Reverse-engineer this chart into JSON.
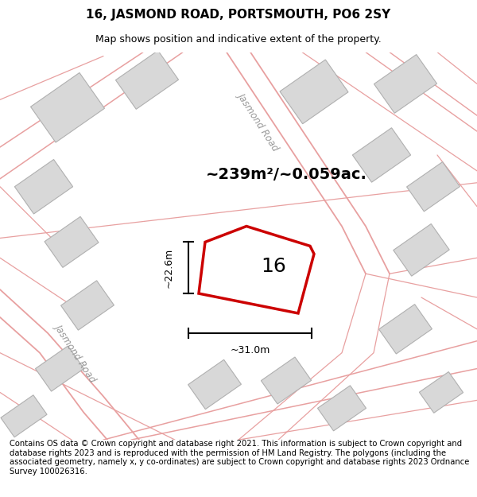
{
  "title": "16, JASMOND ROAD, PORTSMOUTH, PO6 2SY",
  "subtitle": "Map shows position and indicative extent of the property.",
  "footer": "Contains OS data © Crown copyright and database right 2021. This information is subject to Crown copyright and database rights 2023 and is reproduced with the permission of HM Land Registry. The polygons (including the associated geometry, namely x, y co-ordinates) are subject to Crown copyright and database rights 2023 Ordnance Survey 100026316.",
  "area_label": "~239m²/~0.059ac.",
  "number_label": "16",
  "dim_width": "~31.0m",
  "dim_height": "~22.6m",
  "road_label_1": "Jasmond Road",
  "road_label_2": "Jasmond Road",
  "background_color": "#ffffff",
  "building_fill": "#d8d8d8",
  "building_edge": "#b0b0b0",
  "road_line_color": "#e8a0a0",
  "highlight_color": "#cc0000",
  "dim_line_color": "#000000",
  "title_fontsize": 11,
  "subtitle_fontsize": 9,
  "footer_fontsize": 7.2,
  "area_fontsize": 14,
  "number_fontsize": 18,
  "road_fontsize": 8.5
}
